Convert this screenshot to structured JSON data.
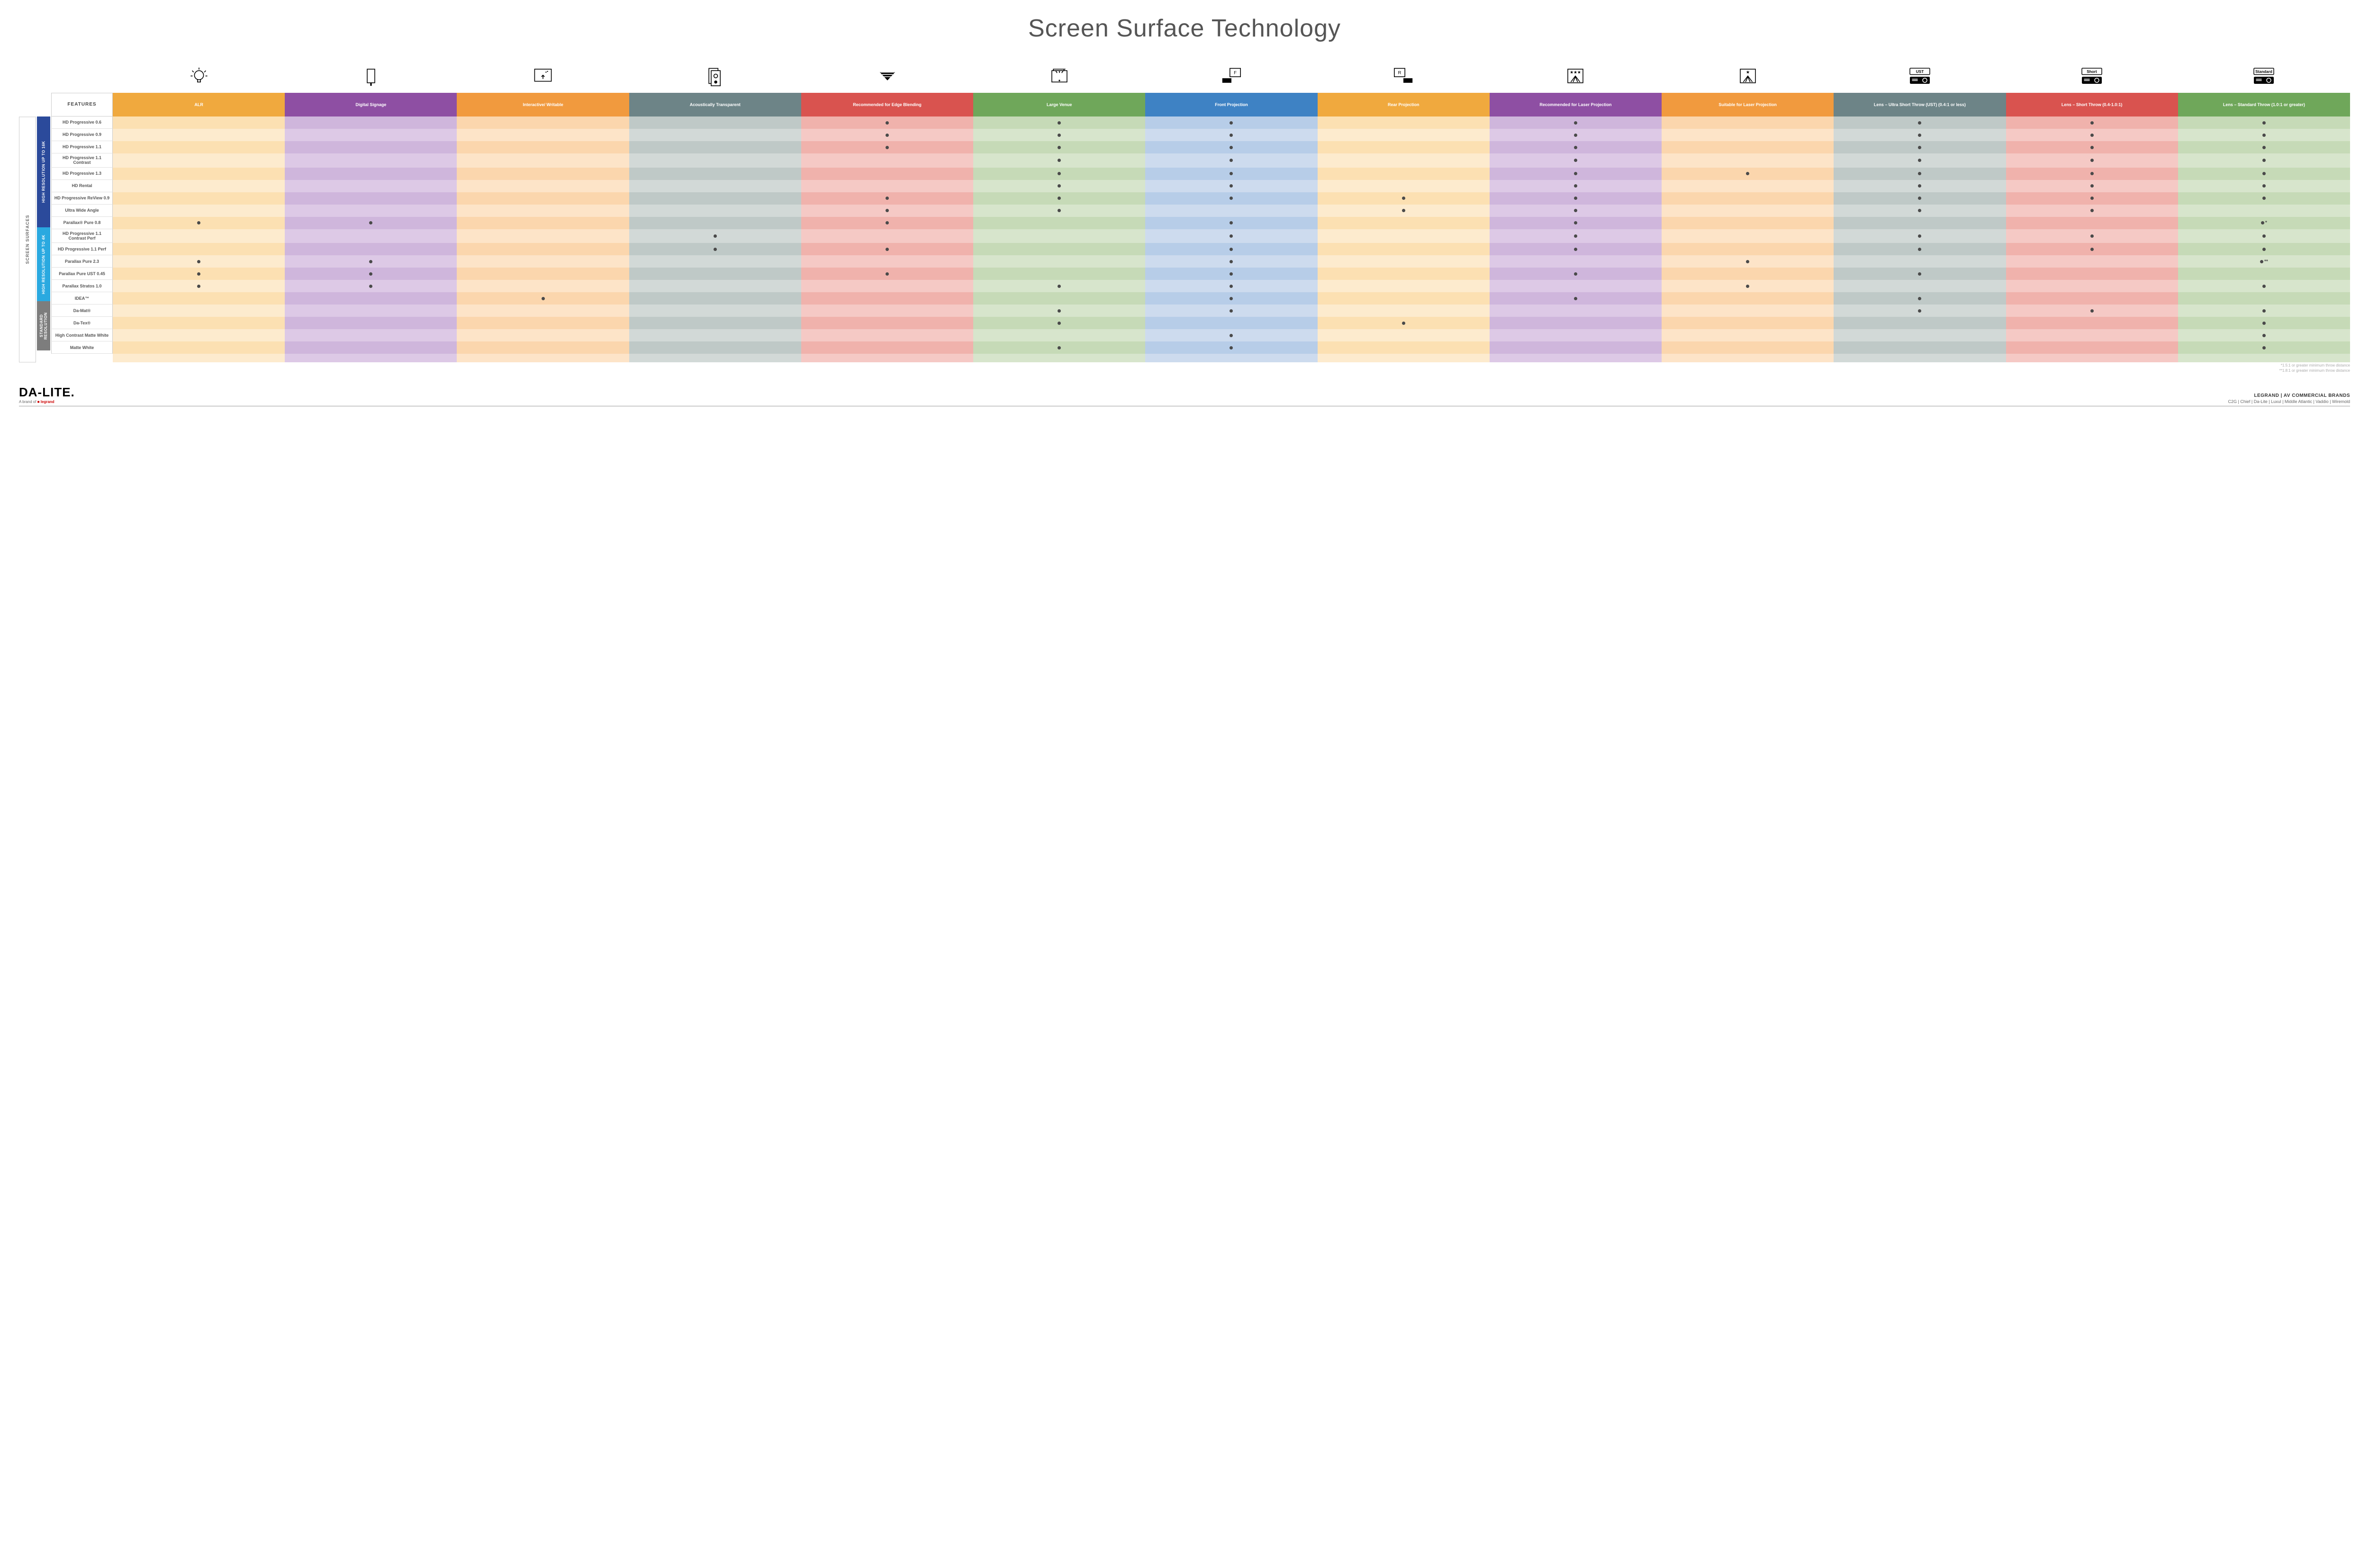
{
  "title": "Screen Surface Technology",
  "gridTemplate": "130px repeat(13, 1fr)",
  "columns": [
    {
      "key": "features",
      "label": "FEATURES",
      "hdrBg": "#ffffff",
      "c1": "#ffffff",
      "c2": "#ffffff"
    },
    {
      "key": "alr",
      "label": "ALR",
      "hdrBg": "#f0a93e",
      "c1": "#fce0b2",
      "c2": "#fdebce"
    },
    {
      "key": "signage",
      "label": "Digital Signage",
      "hdrBg": "#8e4fa3",
      "c1": "#cfb6dc",
      "c2": "#ddc9e6"
    },
    {
      "key": "interactive",
      "label": "Interactive/ Writable",
      "hdrBg": "#f19a3e",
      "c1": "#fbd6ad",
      "c2": "#fde4c8"
    },
    {
      "key": "acoustic",
      "label": "Acoustically Transparent",
      "hdrBg": "#6d8487",
      "c1": "#bfc9c7",
      "c2": "#d2d9d7"
    },
    {
      "key": "edge",
      "label": "Recommended for Edge Blending",
      "hdrBg": "#d9534f",
      "c1": "#f0b2ac",
      "c2": "#f5c9c5"
    },
    {
      "key": "large",
      "label": "Large Venue",
      "hdrBg": "#6fa75a",
      "c1": "#c6dab7",
      "c2": "#d7e5cc"
    },
    {
      "key": "front",
      "label": "Front Projection",
      "hdrBg": "#3e82c4",
      "c1": "#b7cde8",
      "c2": "#cddbee"
    },
    {
      "key": "rear",
      "label": "Rear Projection",
      "hdrBg": "#f0a93e",
      "c1": "#fce0b2",
      "c2": "#fdebce"
    },
    {
      "key": "reclaser",
      "label": "Recommended for Laser Projection",
      "hdrBg": "#8e4fa3",
      "c1": "#cfb6dc",
      "c2": "#ddc9e6"
    },
    {
      "key": "suitlaser",
      "label": "Suitable for Laser Projection",
      "hdrBg": "#f19a3e",
      "c1": "#fbd6ad",
      "c2": "#fde4c8"
    },
    {
      "key": "ust",
      "label": "Lens – Ultra Short Throw (UST) (0.4:1 or less)",
      "hdrBg": "#6d8487",
      "c1": "#bfc9c7",
      "c2": "#d2d9d7"
    },
    {
      "key": "short",
      "label": "Lens – Short Throw (0.4-1.0:1)",
      "hdrBg": "#d9534f",
      "c1": "#f0b2ac",
      "c2": "#f5c9c5"
    },
    {
      "key": "std",
      "label": "Lens – Standard Throw (1.0:1 or greater)",
      "hdrBg": "#6fa75a",
      "c1": "#c6dab7",
      "c2": "#d7e5cc"
    }
  ],
  "groups": [
    {
      "label": "HIGH RESOLUTION UP TO 16K",
      "color": "#2b4a9b",
      "rows": 9
    },
    {
      "label": "HIGH RESOLUTION UP TO 4K",
      "color": "#2aa9e0",
      "rows": 6
    },
    {
      "label": "STANDARD RESOLUTION",
      "color": "#7d7d7d",
      "rows": 4
    }
  ],
  "sideLabel": "SCREEN SURFACES",
  "rows": [
    {
      "label": "HD Progressive 0.6",
      "cells": {
        "edge": "•",
        "large": "•",
        "front": "•",
        "reclaser": "•",
        "ust": "•",
        "short": "•",
        "std": "•"
      }
    },
    {
      "label": "HD Progressive 0.9",
      "cells": {
        "edge": "•",
        "large": "•",
        "front": "•",
        "reclaser": "•",
        "ust": "•",
        "short": "•",
        "std": "•"
      }
    },
    {
      "label": "HD Progressive 1.1",
      "cells": {
        "edge": "•",
        "large": "•",
        "front": "•",
        "reclaser": "•",
        "ust": "•",
        "short": "•",
        "std": "•"
      }
    },
    {
      "label": "HD Progressive 1.1 Contrast",
      "cells": {
        "large": "•",
        "front": "•",
        "reclaser": "•",
        "ust": "•",
        "short": "•",
        "std": "•"
      }
    },
    {
      "label": "HD Progressive 1.3",
      "cells": {
        "large": "•",
        "front": "•",
        "reclaser": "•",
        "suitlaser": "•",
        "ust": "•",
        "short": "•",
        "std": "•"
      }
    },
    {
      "label": "HD Rental",
      "cells": {
        "large": "•",
        "front": "•",
        "reclaser": "•",
        "ust": "•",
        "short": "•",
        "std": "•"
      }
    },
    {
      "label": "HD Progressive ReView 0.9",
      "cells": {
        "edge": "•",
        "large": "•",
        "front": "•",
        "rear": "•",
        "reclaser": "•",
        "ust": "•",
        "short": "•",
        "std": "•"
      }
    },
    {
      "label": "Ultra Wide Angle",
      "cells": {
        "edge": "•",
        "large": "•",
        "rear": "•",
        "reclaser": "•",
        "ust": "•",
        "short": "•"
      }
    },
    {
      "label": "Parallax® Pure 0.8",
      "cells": {
        "alr": "•",
        "signage": "•",
        "edge": "•",
        "front": "•",
        "reclaser": "•",
        "std": "•*"
      }
    },
    {
      "label": "HD Progressive 1.1 Contrast Perf",
      "cells": {
        "acoustic": "•",
        "front": "•",
        "reclaser": "•",
        "ust": "•",
        "short": "•",
        "std": "•"
      }
    },
    {
      "label": "HD Progressive 1.1 Perf",
      "cells": {
        "acoustic": "•",
        "edge": "•",
        "front": "•",
        "reclaser": "•",
        "ust": "•",
        "short": "•",
        "std": "•"
      }
    },
    {
      "label": "Parallax Pure 2.3",
      "cells": {
        "alr": "•",
        "signage": "•",
        "front": "•",
        "suitlaser": "•",
        "std": "•**"
      }
    },
    {
      "label": "Parallax Pure UST 0.45",
      "cells": {
        "alr": "•",
        "signage": "•",
        "edge": "•",
        "front": "•",
        "reclaser": "•",
        "ust": "•"
      }
    },
    {
      "label": "Parallax Stratos 1.0",
      "cells": {
        "alr": "•",
        "signage": "•",
        "large": "•",
        "front": "•",
        "suitlaser": "•",
        "std": "•"
      }
    },
    {
      "label": "IDEA™",
      "cells": {
        "interactive": "•",
        "front": "•",
        "reclaser": "•",
        "ust": "•"
      }
    },
    {
      "label": "Da-Mat®",
      "cells": {
        "large": "•",
        "front": "•",
        "ust": "•",
        "short": "•",
        "std": "•"
      }
    },
    {
      "label": "Da-Tex®",
      "cells": {
        "large": "•",
        "rear": "•",
        "std": "•"
      }
    },
    {
      "label": "High Contrast Matte White",
      "cells": {
        "front": "•",
        "std": "•"
      }
    },
    {
      "label": "Matte White",
      "cells": {
        "large": "•",
        "front": "•",
        "std": "•"
      }
    }
  ],
  "footnotes": [
    "*1.5:1 or greater minimum throw distance",
    "**1.8:1 or greater minimum throw distance"
  ],
  "footer": {
    "logo": "DA-LITE.",
    "tagline_pre": "A brand of ",
    "tagline_brand": "legrand",
    "right1": "LEGRAND | AV COMMERCIAL BRANDS",
    "right2": "C2G  |  Chief  |  Da-Lite  |  Luxul  |  Middle Atlantic  |  Vaddio  |  Wiremold"
  },
  "icons": {
    "alr": "bulb",
    "signage": "signage",
    "interactive": "touch",
    "acoustic": "speaker",
    "edge": "blend",
    "large": "venue",
    "front": "front",
    "rear": "rear",
    "reclaser": "laser3",
    "suitlaser": "laser1",
    "ust": "proj-ust",
    "short": "proj-short",
    "std": "proj-std"
  }
}
